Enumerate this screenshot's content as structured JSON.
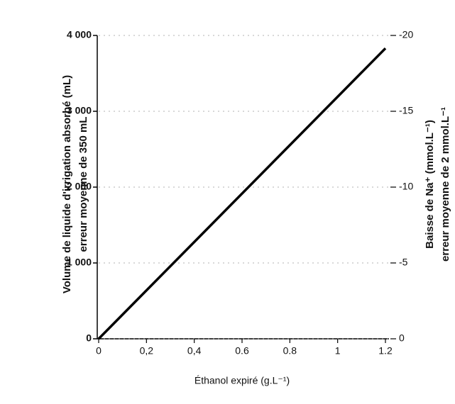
{
  "chart_data": {
    "type": "line",
    "xlabel": "Éthanol expiré (g.L⁻¹)",
    "ylabel": [
      "Volume de liquide d'irrigation absorbé (mL)",
      "erreur moyenne de 350 mL"
    ],
    "y2label": [
      "Baisse de Na⁺ (mmol.L⁻¹)",
      "erreur moyenne de 2 mmol.L⁻¹"
    ],
    "x": [
      0,
      1.2
    ],
    "series": [
      {
        "color": "#000000",
        "values": [
          0,
          3830
        ]
      }
    ],
    "xlim": [
      0,
      1.2
    ],
    "xticks": [
      0,
      {
        "value": 0.2,
        "label": "0,2"
      },
      {
        "value": 0.4,
        "label": "0,4"
      },
      0.6,
      0.8,
      1,
      1.2
    ],
    "ylim": [
      0,
      4000
    ],
    "yticks": [
      0,
      {
        "value": 1000,
        "label": "1 000"
      },
      {
        "value": 2000,
        "label": "2 000"
      },
      {
        "value": 3000,
        "label": "3 000"
      },
      {
        "value": 4000,
        "label": "4 000"
      }
    ],
    "y2lim": [
      0,
      -20
    ],
    "y2ticks": [
      0,
      -5,
      -10,
      -15,
      -20
    ],
    "grid": true
  }
}
